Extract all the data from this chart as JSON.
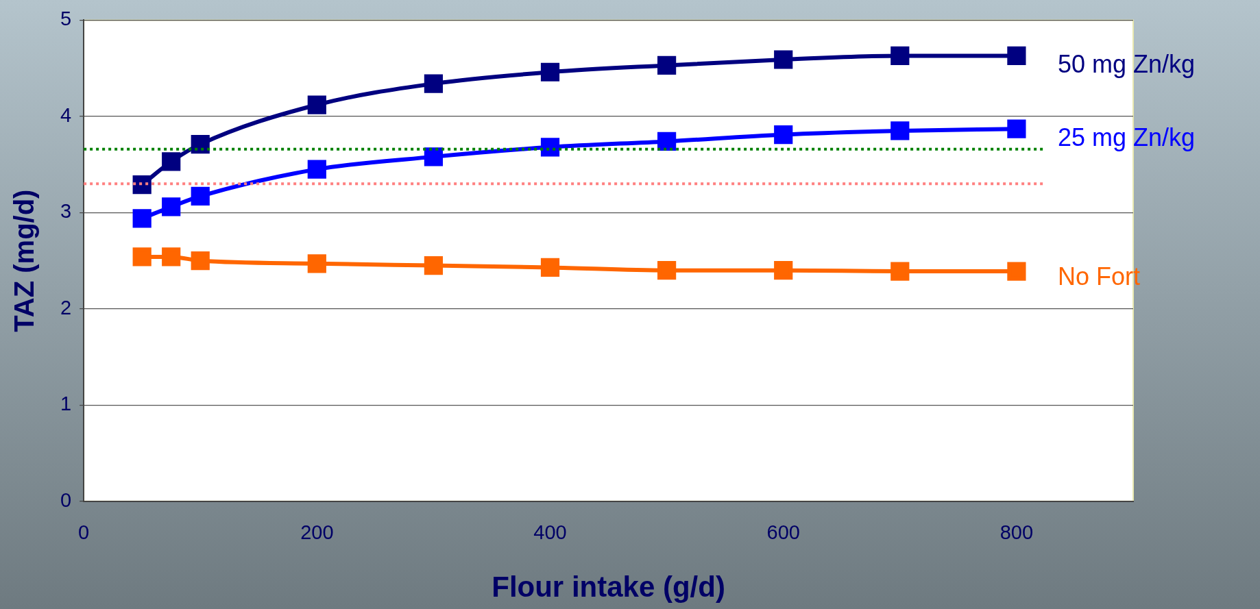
{
  "chart_data": {
    "type": "line",
    "xlabel": "Flour intake (g/d)",
    "ylabel": "TAZ (mg/d)",
    "xlim": [
      0,
      900
    ],
    "xticks": [
      0,
      200,
      400,
      600,
      800
    ],
    "ylim": [
      0,
      5
    ],
    "yticks": [
      0,
      1,
      2,
      3,
      4,
      5
    ],
    "grid": "y",
    "legend": false,
    "marker": "square",
    "line_style": "solid",
    "x": [
      50,
      75,
      100,
      200,
      300,
      400,
      500,
      600,
      700,
      800
    ],
    "series": [
      {
        "name": "50 mg Zn/kg",
        "color": "#000080",
        "values": [
          3.29,
          3.53,
          3.71,
          4.12,
          4.34,
          4.46,
          4.53,
          4.59,
          4.63,
          4.63
        ]
      },
      {
        "name": "25 mg Zn/kg",
        "color": "#0000ff",
        "values": [
          2.94,
          3.06,
          3.17,
          3.45,
          3.58,
          3.68,
          3.74,
          3.81,
          3.85,
          3.87
        ]
      },
      {
        "name": "No Fort",
        "color": "#ff6600",
        "values": [
          2.54,
          2.54,
          2.5,
          2.47,
          2.45,
          2.43,
          2.4,
          2.4,
          2.39,
          2.39
        ]
      }
    ],
    "ref_lines": [
      {
        "axis": "y",
        "value": 3.66,
        "color": "#008000",
        "line_style": "dotted"
      },
      {
        "axis": "y",
        "value": 3.3,
        "color": "#ff8080",
        "line_style": "dotted"
      }
    ]
  }
}
